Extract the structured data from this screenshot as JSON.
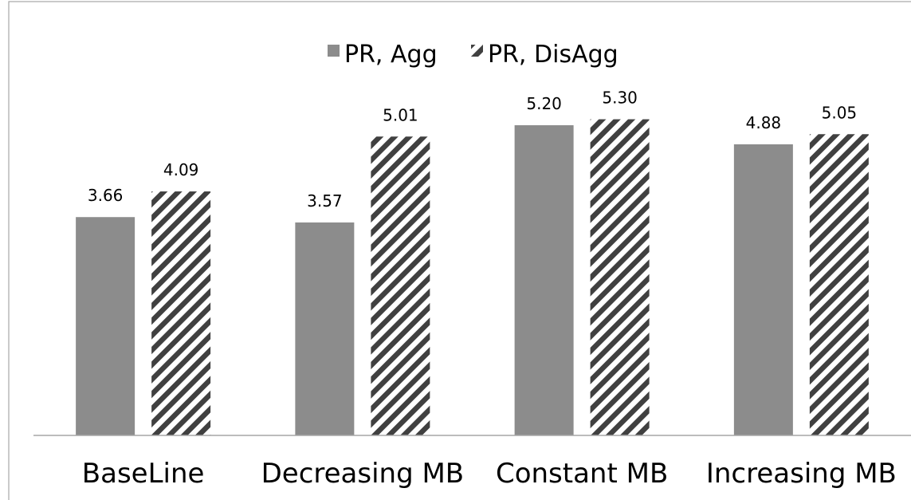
{
  "chart_data": {
    "type": "bar",
    "title": "",
    "xlabel": "",
    "ylabel": "",
    "categories": [
      "BaseLine",
      "Decreasing MB",
      "Constant MB",
      "Increasing MB"
    ],
    "series": [
      {
        "name": "PR, Agg",
        "values": [
          3.66,
          3.57,
          5.2,
          4.88
        ],
        "value_labels": [
          "3.66",
          "3.57",
          "5.20",
          "4.88"
        ],
        "fill": "solid",
        "color": "#8c8c8c"
      },
      {
        "name": "PR, DisAgg",
        "values": [
          4.09,
          5.01,
          5.3,
          5.05
        ],
        "value_labels": [
          "4.09",
          "5.01",
          "5.30",
          "5.05"
        ],
        "fill": "diagonal-hatch",
        "color": "#404040"
      }
    ],
    "ylim": [
      0,
      6
    ],
    "grid": false,
    "y_axis_visible": false,
    "legend_position": "top-center",
    "colors": {
      "axis": "#a6a6a6",
      "frame": "#a6a6a6",
      "hatch_background": "#ffffff"
    }
  }
}
